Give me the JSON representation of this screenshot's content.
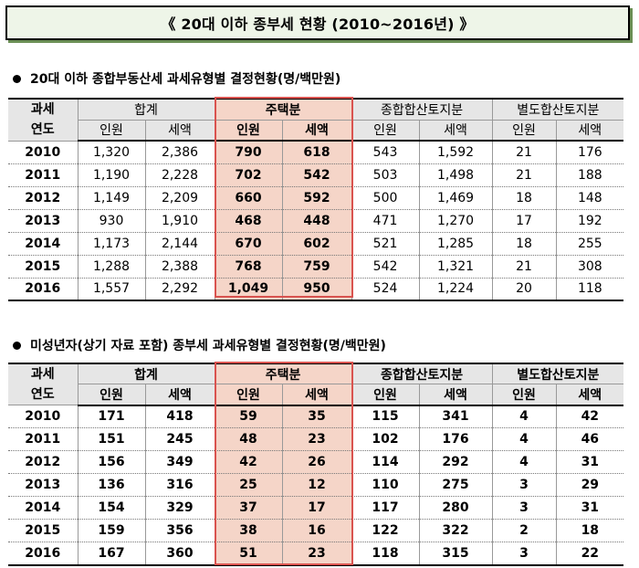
{
  "page_title": "《 20대 이하 종부세 현황 (2010∼2016년) 》",
  "section1": {
    "title": "20대 이하 종합부동산세 과세유형별 결정현황(명/백만원)"
  },
  "section2": {
    "title": "미성년자(상기 자료 포함) 종부세 과세유형별 결정현황(명/백만원)"
  },
  "headers": {
    "year_line1": "과세",
    "year_line2": "연도",
    "groups": [
      "합계",
      "주택분",
      "종합합산토지분",
      "별도합산토지분"
    ],
    "persons": "인원",
    "tax": "세액"
  },
  "table1": {
    "rows": [
      [
        "2010",
        "1,320",
        "2,386",
        "790",
        "618",
        "543",
        "1,592",
        "21",
        "176"
      ],
      [
        "2011",
        "1,190",
        "2,228",
        "702",
        "542",
        "503",
        "1,498",
        "21",
        "188"
      ],
      [
        "2012",
        "1,149",
        "2,209",
        "660",
        "592",
        "500",
        "1,469",
        "18",
        "148"
      ],
      [
        "2013",
        "930",
        "1,910",
        "468",
        "448",
        "471",
        "1,270",
        "17",
        "192"
      ],
      [
        "2014",
        "1,173",
        "2,144",
        "670",
        "602",
        "521",
        "1,285",
        "18",
        "255"
      ],
      [
        "2015",
        "1,288",
        "2,388",
        "768",
        "759",
        "542",
        "1,321",
        "21",
        "308"
      ],
      [
        "2016",
        "1,557",
        "2,292",
        "1,049",
        "950",
        "524",
        "1,224",
        "20",
        "118"
      ]
    ]
  },
  "table2": {
    "rows": [
      [
        "2010",
        "171",
        "418",
        "59",
        "35",
        "115",
        "341",
        "4",
        "42"
      ],
      [
        "2011",
        "151",
        "245",
        "48",
        "23",
        "102",
        "176",
        "4",
        "46"
      ],
      [
        "2012",
        "156",
        "349",
        "42",
        "26",
        "114",
        "292",
        "4",
        "31"
      ],
      [
        "2013",
        "136",
        "316",
        "25",
        "12",
        "110",
        "275",
        "3",
        "29"
      ],
      [
        "2014",
        "154",
        "329",
        "37",
        "17",
        "117",
        "280",
        "3",
        "31"
      ],
      [
        "2015",
        "159",
        "356",
        "38",
        "16",
        "122",
        "322",
        "2",
        "18"
      ],
      [
        "2016",
        "167",
        "360",
        "51",
        "23",
        "118",
        "315",
        "3",
        "22"
      ]
    ]
  },
  "colors": {
    "highlight_fill": "#f5d5c8",
    "highlight_border": "#d9534f",
    "header_fill": "#e6e6e6",
    "title_fill": "#eef5e8"
  }
}
